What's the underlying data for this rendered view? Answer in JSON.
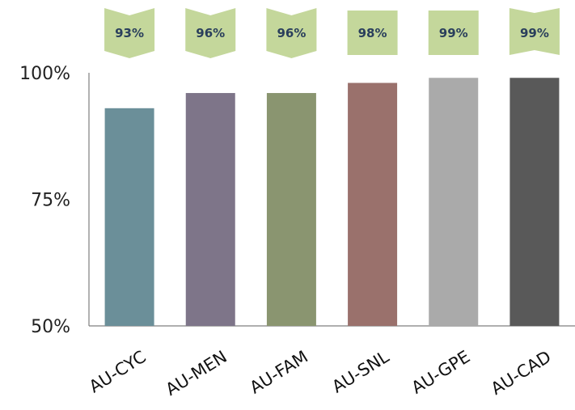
{
  "chart_data": {
    "type": "bar",
    "categories": [
      "AU-CYC",
      "AU-MEN",
      "AU-FAM",
      "AU-SNL",
      "AU-GPE",
      "AU-CAD"
    ],
    "values": [
      93,
      96,
      96,
      98,
      99,
      99
    ],
    "data_labels": [
      "93%",
      "96%",
      "96%",
      "98%",
      "99%",
      "99%"
    ],
    "bar_colors": [
      "#6b8f99",
      "#7e7589",
      "#8a9570",
      "#9a716c",
      "#aaaaaa",
      "#595959"
    ],
    "label_callout_color": "#c4d79b",
    "ylim": [
      50,
      100
    ],
    "yticks": [
      50,
      75,
      100
    ],
    "ytick_labels": [
      "50%",
      "75%",
      "100%"
    ],
    "title": "",
    "xlabel": "",
    "ylabel": "",
    "grid": false,
    "legend": "none"
  }
}
